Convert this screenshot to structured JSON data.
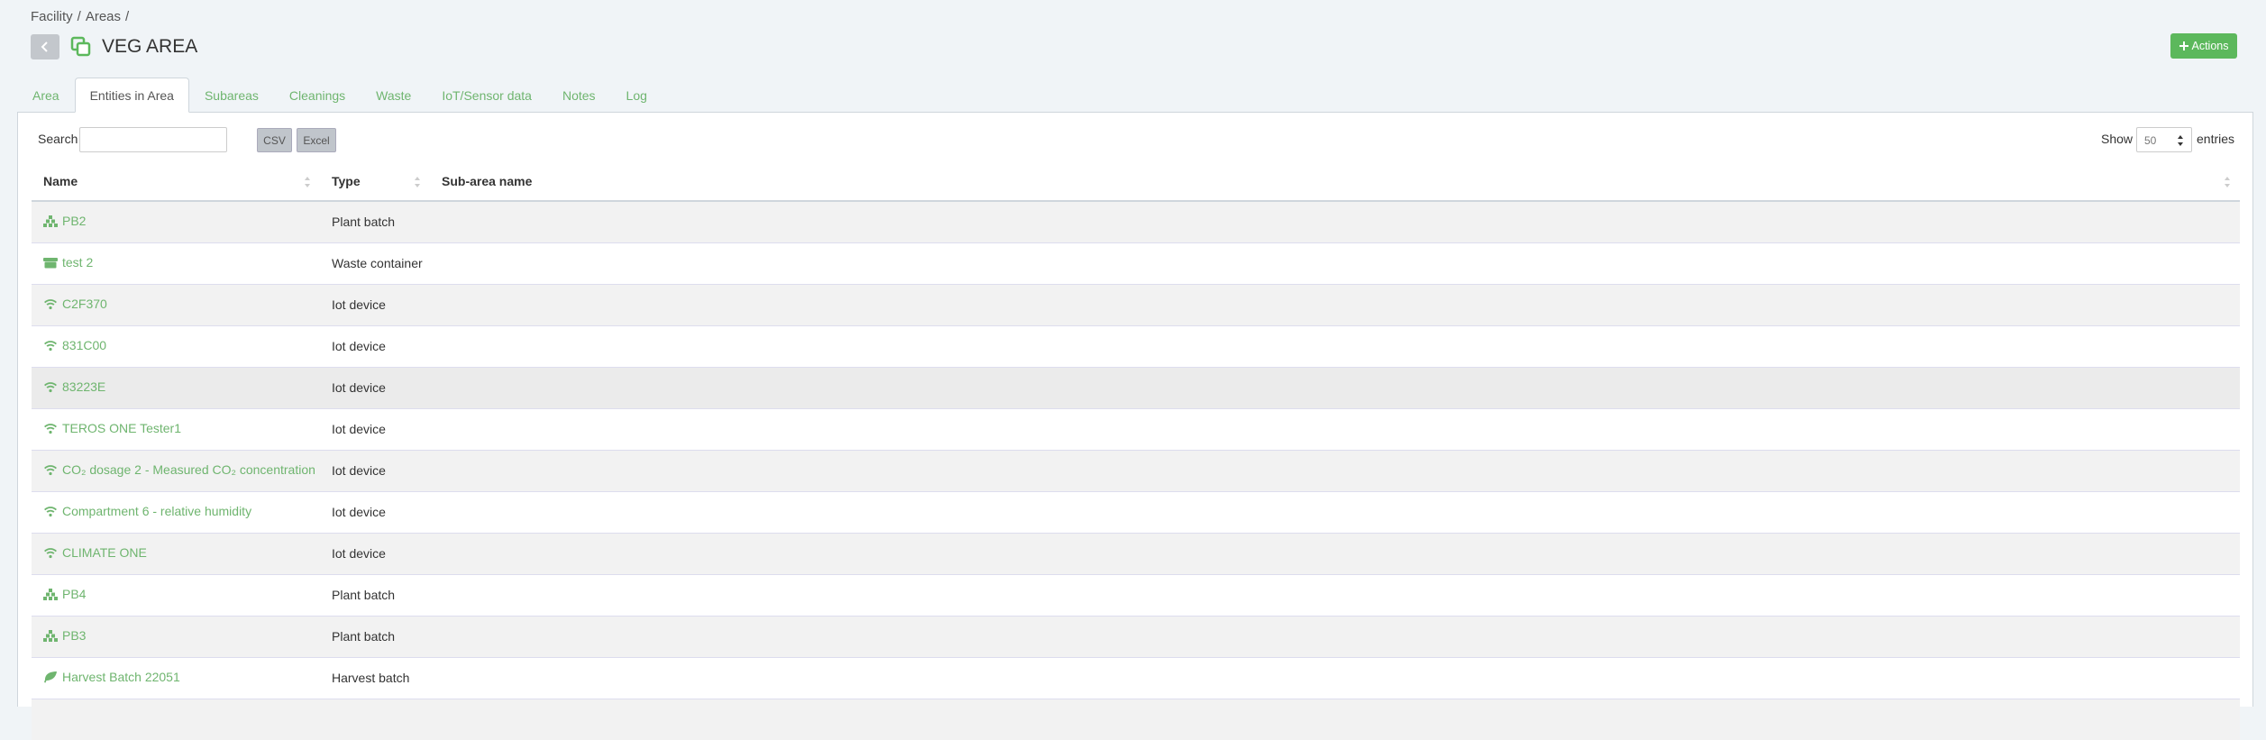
{
  "breadcrumb": {
    "items": [
      "Facility",
      "Areas"
    ],
    "separator": "/"
  },
  "header": {
    "title": "VEG AREA",
    "actions_button": "Actions"
  },
  "tabs": {
    "items": [
      "Area",
      "Entities in Area",
      "Subareas",
      "Cleanings",
      "Waste",
      "IoT/Sensor data",
      "Notes",
      "Log"
    ],
    "active": 1
  },
  "toolbar": {
    "search_label": "Search",
    "buttons": [
      "CSV",
      "Excel"
    ],
    "show_label": "Show",
    "page_size": 50,
    "entries_label": "entries"
  },
  "table": {
    "columns": [
      "Name",
      "Type",
      "Sub-area name"
    ],
    "rows": [
      [
        "PB2",
        "Plant batch"
      ],
      [
        "test 2",
        "Waste container"
      ],
      [
        "C2F370",
        "Iot device"
      ],
      [
        "831C00",
        "Iot device"
      ],
      [
        "83223E",
        "Iot device"
      ],
      [
        "TEROS ONE Tester1",
        "Iot device"
      ],
      [
        "CO₂ dosage 2 - Measured CO₂ concentration",
        "Iot device"
      ],
      [
        "Compartment 6 - relative humidity",
        "Iot device"
      ],
      [
        "CLIMATE ONE",
        "Iot device"
      ],
      [
        "PB4",
        "Plant batch"
      ],
      [
        "PB3",
        "Plant batch"
      ],
      [
        "Harvest Batch 22051",
        "Harvest batch"
      ]
    ]
  }
}
